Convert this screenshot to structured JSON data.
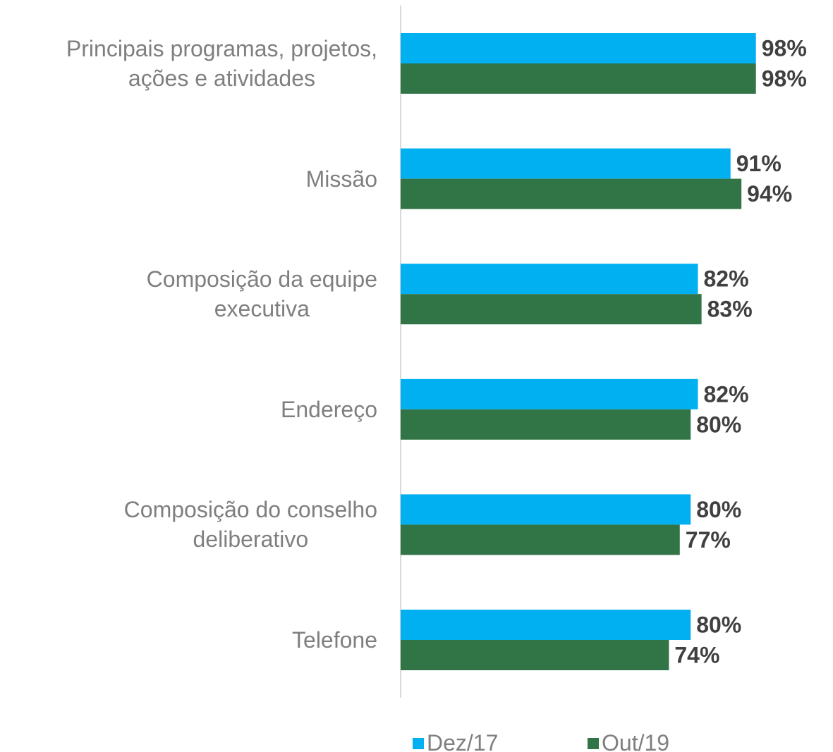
{
  "chart_data": {
    "type": "bar",
    "orientation": "horizontal",
    "categories": [
      "Principais programas, projetos,\nações e atividades",
      "Missão",
      "Composição da equipe\nexecutiva",
      "Endereço",
      "Composição do conselho\ndeliberativo",
      "Telefone"
    ],
    "series": [
      {
        "name": "Dez/17",
        "color": "#00b0f0",
        "values": [
          98,
          91,
          82,
          82,
          80,
          80
        ],
        "value_labels": [
          "98%",
          "91%",
          "82%",
          "82%",
          "80%",
          "80%"
        ]
      },
      {
        "name": "Out/19",
        "color": "#317446",
        "values": [
          98,
          94,
          83,
          80,
          77,
          74
        ],
        "value_labels": [
          "98%",
          "94%",
          "83%",
          "80%",
          "77%",
          "74%"
        ]
      }
    ],
    "xlim": [
      0,
      100
    ],
    "legend": "bottom"
  }
}
